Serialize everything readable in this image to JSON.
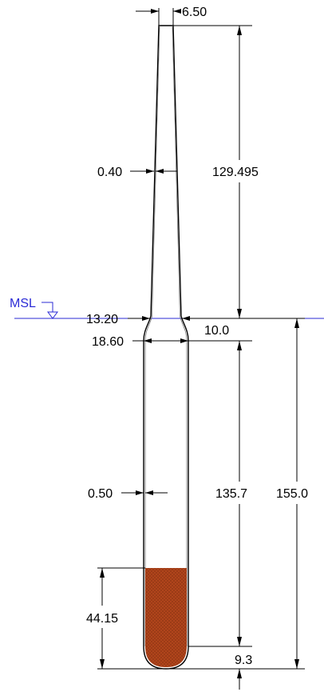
{
  "colors": {
    "msl_line": "#2b2bd6",
    "fill": "#b3461d",
    "outline": "#000000",
    "inner_outline": "#777777"
  },
  "labels": {
    "msl": "MSL",
    "top_width": "6.50",
    "top_wall": "0.40",
    "top_length": "129.495",
    "neck_outer": "13.20",
    "neck_inner": "10.0",
    "body_outer": "18.60",
    "body_wall": "0.50",
    "body_length": "135.7",
    "total_length": "155.0",
    "fill_height": "44.15",
    "bottom": "9.3"
  }
}
